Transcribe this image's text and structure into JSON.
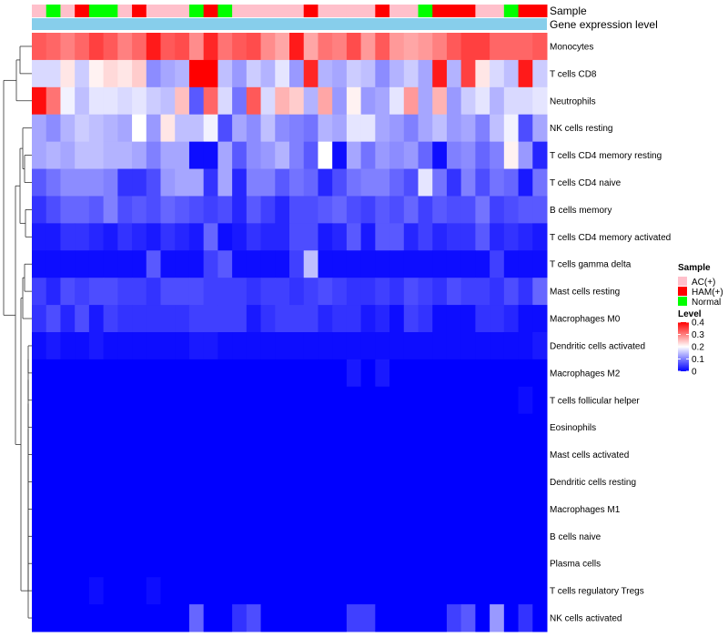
{
  "chart_data": {
    "type": "heatmap",
    "title": "",
    "annotation_tracks": [
      "Sample",
      "Gene expression level"
    ],
    "sample_groups": [
      "AC",
      "Normal",
      "AC",
      "HAM",
      "Normal",
      "Normal",
      "AC",
      "HAM",
      "AC",
      "AC",
      "AC",
      "Normal",
      "HAM",
      "Normal",
      "AC",
      "AC",
      "AC",
      "AC",
      "AC",
      "HAM",
      "AC",
      "AC",
      "AC",
      "AC",
      "HAM",
      "AC",
      "AC",
      "Normal",
      "HAM",
      "HAM",
      "HAM",
      "AC",
      "AC",
      "Normal",
      "HAM",
      "HAM"
    ],
    "rows": [
      "Monocytes",
      "T cells CD8",
      "Neutrophils",
      "NK cells resting",
      "T cells CD4 memory resting",
      "T cells CD4 naive",
      "B cells memory",
      "T cells CD4 memory activated",
      "T cells gamma delta",
      "Mast cells resting",
      "Macrophages M0",
      "Dendritic cells activated",
      "Macrophages M2",
      "T cells follicular helper",
      "Eosinophils",
      "Mast cells activated",
      "Dendritic cells resting",
      "Macrophages M1",
      "B cells naive",
      "Plasma cells",
      "T cells regulatory  Tregs",
      "NK cells activated"
    ],
    "values": [
      [
        0.33,
        0.32,
        0.3,
        0.32,
        0.35,
        0.33,
        0.3,
        0.32,
        0.38,
        0.33,
        0.34,
        0.29,
        0.37,
        0.31,
        0.33,
        0.34,
        0.29,
        0.27,
        0.38,
        0.27,
        0.31,
        0.3,
        0.34,
        0.28,
        0.33,
        0.28,
        0.27,
        0.28,
        0.3,
        0.33,
        0.35,
        0.35,
        0.32,
        0.32,
        0.32,
        0.33
      ],
      [
        0.17,
        0.17,
        0.22,
        0.16,
        0.21,
        0.23,
        0.22,
        0.24,
        0.11,
        0.13,
        0.14,
        0.42,
        0.41,
        0.15,
        0.12,
        0.16,
        0.14,
        0.18,
        0.12,
        0.37,
        0.14,
        0.13,
        0.16,
        0.15,
        0.11,
        0.14,
        0.16,
        0.13,
        0.38,
        0.14,
        0.35,
        0.22,
        0.17,
        0.15,
        0.38,
        0.16
      ],
      [
        0.39,
        0.31,
        0.19,
        0.15,
        0.18,
        0.18,
        0.17,
        0.18,
        0.16,
        0.15,
        0.25,
        0.07,
        0.32,
        0.17,
        0.09,
        0.33,
        0.17,
        0.26,
        0.24,
        0.14,
        0.27,
        0.12,
        0.21,
        0.12,
        0.13,
        0.18,
        0.28,
        0.13,
        0.26,
        0.12,
        0.16,
        0.18,
        0.14,
        0.17,
        0.17,
        0.18
      ],
      [
        0.13,
        0.11,
        0.14,
        0.16,
        0.15,
        0.14,
        0.13,
        0.2,
        0.12,
        0.22,
        0.15,
        0.15,
        0.19,
        0.06,
        0.13,
        0.11,
        0.15,
        0.11,
        0.1,
        0.09,
        0.14,
        0.13,
        0.18,
        0.18,
        0.13,
        0.12,
        0.1,
        0.13,
        0.15,
        0.12,
        0.13,
        0.1,
        0.15,
        0.19,
        0.06,
        0.13
      ],
      [
        0.13,
        0.14,
        0.13,
        0.15,
        0.15,
        0.14,
        0.14,
        0.13,
        0.1,
        0.13,
        0.13,
        0.01,
        0.01,
        0.13,
        0.07,
        0.11,
        0.12,
        0.14,
        0.1,
        0.07,
        0.2,
        0.01,
        0.13,
        0.09,
        0.12,
        0.11,
        0.12,
        0.08,
        0.01,
        0.1,
        0.11,
        0.08,
        0.1,
        0.21,
        0.12,
        0.03
      ],
      [
        0.07,
        0.09,
        0.11,
        0.11,
        0.11,
        0.1,
        0.04,
        0.04,
        0.06,
        0.12,
        0.13,
        0.13,
        0.04,
        0.13,
        0.03,
        0.1,
        0.1,
        0.07,
        0.09,
        0.08,
        0.03,
        0.06,
        0.09,
        0.1,
        0.1,
        0.08,
        0.06,
        0.18,
        0.09,
        0.04,
        0.1,
        0.06,
        0.09,
        0.08,
        0.02,
        0.09
      ],
      [
        0.04,
        0.06,
        0.08,
        0.08,
        0.07,
        0.1,
        0.06,
        0.07,
        0.06,
        0.08,
        0.07,
        0.06,
        0.05,
        0.06,
        0.03,
        0.07,
        0.05,
        0.03,
        0.06,
        0.06,
        0.07,
        0.08,
        0.06,
        0.05,
        0.07,
        0.06,
        0.08,
        0.05,
        0.07,
        0.06,
        0.06,
        0.09,
        0.05,
        0.06,
        0.07,
        0.07
      ],
      [
        0.02,
        0.02,
        0.04,
        0.04,
        0.03,
        0.02,
        0.04,
        0.03,
        0.02,
        0.04,
        0.03,
        0.02,
        0.08,
        0.01,
        0.02,
        0.04,
        0.03,
        0.03,
        0.06,
        0.06,
        0.02,
        0.03,
        0.07,
        0.02,
        0.07,
        0.07,
        0.03,
        0.05,
        0.03,
        0.04,
        0.04,
        0.07,
        0.03,
        0.04,
        0.03,
        0.02
      ],
      [
        0.01,
        0.01,
        0.01,
        0.01,
        0.01,
        0.01,
        0.01,
        0.01,
        0.07,
        0.01,
        0.01,
        0.01,
        0.05,
        0.07,
        0.01,
        0.01,
        0.01,
        0.01,
        0.05,
        0.15,
        0.01,
        0.01,
        0.01,
        0.01,
        0.01,
        0.01,
        0.01,
        0.01,
        0.01,
        0.01,
        0.01,
        0.01,
        0.05,
        0.01,
        0.01,
        0.01
      ],
      [
        0.05,
        0.03,
        0.06,
        0.05,
        0.06,
        0.06,
        0.05,
        0.05,
        0.04,
        0.06,
        0.06,
        0.06,
        0.05,
        0.05,
        0.05,
        0.04,
        0.05,
        0.05,
        0.04,
        0.05,
        0.06,
        0.05,
        0.04,
        0.04,
        0.05,
        0.04,
        0.06,
        0.05,
        0.04,
        0.06,
        0.05,
        0.05,
        0.04,
        0.06,
        0.04,
        0.08
      ],
      [
        0.04,
        0.06,
        0.03,
        0.06,
        0.02,
        0.05,
        0.04,
        0.04,
        0.04,
        0.04,
        0.04,
        0.05,
        0.05,
        0.05,
        0.05,
        0.02,
        0.04,
        0.05,
        0.05,
        0.05,
        0.03,
        0.04,
        0.04,
        0.02,
        0.03,
        0.01,
        0.05,
        0.04,
        0.01,
        0.01,
        0.01,
        0.04,
        0.04,
        0.03,
        0.01,
        0.01
      ],
      [
        0.01,
        0.02,
        0.01,
        0.01,
        0.02,
        0.01,
        0.01,
        0.01,
        0.01,
        0.01,
        0.01,
        0.02,
        0.02,
        0.01,
        0.01,
        0.01,
        0.01,
        0.01,
        0.01,
        0.01,
        0.01,
        0.01,
        0.01,
        0.01,
        0.01,
        0.01,
        0.01,
        0.01,
        0.01,
        0.01,
        0.01,
        0.01,
        0.01,
        0.01,
        0.01,
        0.02
      ],
      [
        0.0,
        0.0,
        0.0,
        0.0,
        0.0,
        0.0,
        0.0,
        0.0,
        0.0,
        0.0,
        0.0,
        0.0,
        0.0,
        0.0,
        0.0,
        0.0,
        0.0,
        0.0,
        0.0,
        0.0,
        0.0,
        0.0,
        0.02,
        0.0,
        0.02,
        0.0,
        0.0,
        0.0,
        0.0,
        0.0,
        0.0,
        0.0,
        0.0,
        0.0,
        0.0,
        0.0
      ],
      [
        0.0,
        0.0,
        0.0,
        0.0,
        0.0,
        0.0,
        0.0,
        0.0,
        0.0,
        0.0,
        0.0,
        0.0,
        0.0,
        0.0,
        0.0,
        0.0,
        0.0,
        0.0,
        0.0,
        0.0,
        0.0,
        0.0,
        0.0,
        0.0,
        0.0,
        0.0,
        0.0,
        0.0,
        0.0,
        0.0,
        0.0,
        0.0,
        0.0,
        0.0,
        0.01,
        0.0
      ],
      [
        0.0,
        0.0,
        0.0,
        0.0,
        0.0,
        0.0,
        0.0,
        0.0,
        0.0,
        0.0,
        0.0,
        0.0,
        0.0,
        0.0,
        0.0,
        0.0,
        0.0,
        0.0,
        0.0,
        0.0,
        0.0,
        0.0,
        0.0,
        0.0,
        0.0,
        0.0,
        0.0,
        0.0,
        0.0,
        0.0,
        0.0,
        0.0,
        0.0,
        0.0,
        0.0,
        0.0
      ],
      [
        0.0,
        0.0,
        0.0,
        0.0,
        0.0,
        0.0,
        0.0,
        0.0,
        0.0,
        0.0,
        0.0,
        0.0,
        0.0,
        0.0,
        0.0,
        0.0,
        0.0,
        0.0,
        0.0,
        0.0,
        0.0,
        0.0,
        0.0,
        0.0,
        0.0,
        0.0,
        0.0,
        0.0,
        0.0,
        0.0,
        0.0,
        0.0,
        0.0,
        0.0,
        0.0,
        0.0
      ],
      [
        0.0,
        0.0,
        0.0,
        0.0,
        0.0,
        0.0,
        0.0,
        0.0,
        0.0,
        0.0,
        0.0,
        0.0,
        0.0,
        0.0,
        0.0,
        0.0,
        0.0,
        0.0,
        0.0,
        0.0,
        0.0,
        0.0,
        0.0,
        0.0,
        0.0,
        0.0,
        0.0,
        0.0,
        0.0,
        0.0,
        0.0,
        0.0,
        0.0,
        0.0,
        0.0,
        0.0
      ],
      [
        0.0,
        0.0,
        0.0,
        0.0,
        0.0,
        0.0,
        0.0,
        0.0,
        0.0,
        0.0,
        0.0,
        0.0,
        0.0,
        0.0,
        0.0,
        0.0,
        0.0,
        0.0,
        0.0,
        0.0,
        0.0,
        0.0,
        0.0,
        0.0,
        0.0,
        0.0,
        0.0,
        0.0,
        0.0,
        0.0,
        0.0,
        0.0,
        0.0,
        0.0,
        0.0,
        0.0
      ],
      [
        0.0,
        0.0,
        0.0,
        0.0,
        0.0,
        0.0,
        0.0,
        0.0,
        0.0,
        0.0,
        0.0,
        0.0,
        0.0,
        0.0,
        0.0,
        0.0,
        0.0,
        0.0,
        0.0,
        0.0,
        0.0,
        0.0,
        0.0,
        0.0,
        0.0,
        0.0,
        0.0,
        0.0,
        0.0,
        0.0,
        0.0,
        0.0,
        0.0,
        0.0,
        0.0,
        0.0
      ],
      [
        0.0,
        0.0,
        0.0,
        0.0,
        0.0,
        0.0,
        0.0,
        0.0,
        0.0,
        0.0,
        0.0,
        0.0,
        0.0,
        0.0,
        0.0,
        0.0,
        0.0,
        0.0,
        0.0,
        0.0,
        0.0,
        0.0,
        0.0,
        0.0,
        0.0,
        0.0,
        0.0,
        0.0,
        0.0,
        0.0,
        0.0,
        0.0,
        0.0,
        0.0,
        0.0,
        0.0
      ],
      [
        0.0,
        0.0,
        0.0,
        0.0,
        0.01,
        0.0,
        0.0,
        0.0,
        0.01,
        0.0,
        0.0,
        0.0,
        0.0,
        0.0,
        0.0,
        0.0,
        0.0,
        0.0,
        0.0,
        0.0,
        0.0,
        0.0,
        0.0,
        0.0,
        0.0,
        0.0,
        0.0,
        0.0,
        0.0,
        0.0,
        0.0,
        0.0,
        0.0,
        0.0,
        0.0,
        0.0
      ],
      [
        0.0,
        0.0,
        0.0,
        0.0,
        0.0,
        0.0,
        0.0,
        0.0,
        0.0,
        0.0,
        0.0,
        0.08,
        0.0,
        0.0,
        0.04,
        0.06,
        0.0,
        0.0,
        0.0,
        0.0,
        0.0,
        0.0,
        0.05,
        0.05,
        0.0,
        0.0,
        0.0,
        0.0,
        0.0,
        0.05,
        0.07,
        0.0,
        0.12,
        0.0,
        0.04,
        0.0
      ]
    ],
    "color_scale": {
      "colors": [
        "#0000ff",
        "#ffffff",
        "#ff0000"
      ],
      "range": [
        0,
        0.4
      ],
      "mid": 0.2
    },
    "legends": {
      "sample": {
        "title": "Sample",
        "entries": [
          {
            "label": "AC(+)",
            "key": "AC",
            "color": "#ffc0cb"
          },
          {
            "label": "HAM(+)",
            "key": "HAM",
            "color": "#ff0000"
          },
          {
            "label": "Normal",
            "key": "Normal",
            "color": "#00ff00"
          }
        ]
      },
      "level": {
        "title": "Level",
        "ticks": [
          "0.4",
          "0.3",
          "0.2",
          "0.1",
          "0"
        ]
      }
    },
    "gene_expression_track_color": "#87ceeb"
  }
}
